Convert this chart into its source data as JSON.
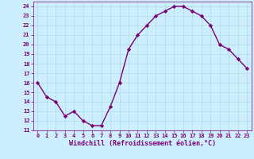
{
  "x": [
    0,
    1,
    2,
    3,
    4,
    5,
    6,
    7,
    8,
    9,
    10,
    11,
    12,
    13,
    14,
    15,
    16,
    17,
    18,
    19,
    20,
    21,
    22,
    23
  ],
  "y": [
    16,
    14.5,
    14,
    12.5,
    13,
    12,
    11.5,
    11.5,
    13.5,
    16,
    19.5,
    21,
    22,
    23,
    23.5,
    24,
    24,
    23.5,
    23,
    22,
    20,
    19.5,
    18.5,
    17.5
  ],
  "line_color": "#7b0073",
  "marker": "D",
  "marker_size": 2.2,
  "bg_color": "#cceeff",
  "grid_color": "#aadddd",
  "xlabel": "Windchill (Refroidissement éolien,°C)",
  "xlabel_color": "#7b0073",
  "ylim": [
    11,
    24.5
  ],
  "xlim": [
    -0.5,
    23.5
  ],
  "yticks": [
    11,
    12,
    13,
    14,
    15,
    16,
    17,
    18,
    19,
    20,
    21,
    22,
    23,
    24
  ],
  "xticks": [
    0,
    1,
    2,
    3,
    4,
    5,
    6,
    7,
    8,
    9,
    10,
    11,
    12,
    13,
    14,
    15,
    16,
    17,
    18,
    19,
    20,
    21,
    22,
    23
  ],
  "tick_color": "#7b0073",
  "tick_fontsize": 5.0,
  "xlabel_fontsize": 6.0,
  "linewidth": 1.0
}
